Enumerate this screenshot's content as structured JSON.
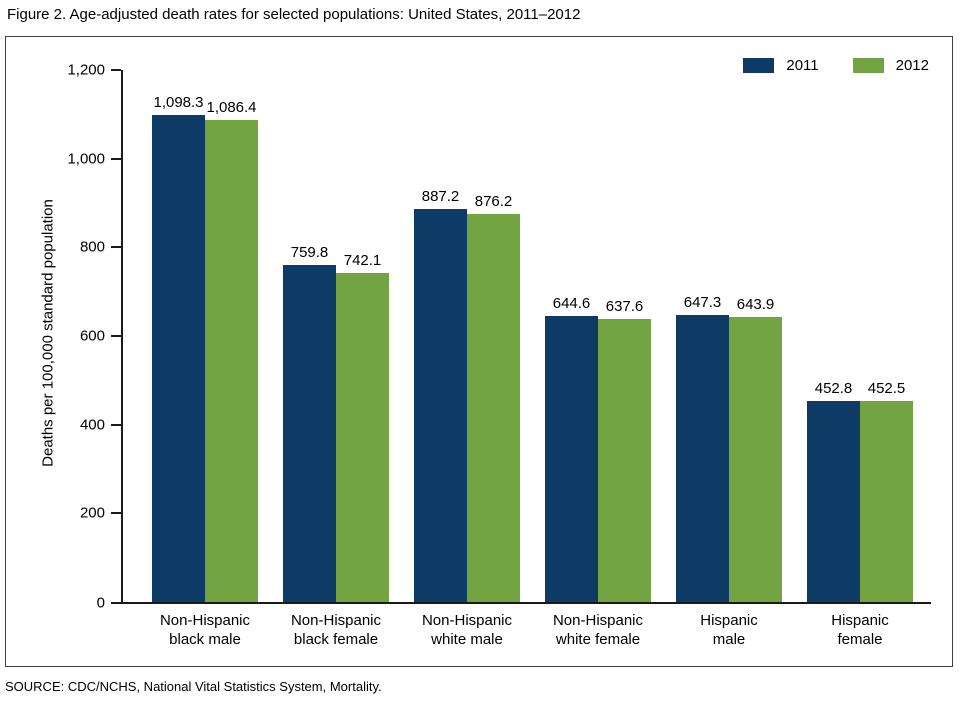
{
  "title": "Figure 2. Age-adjusted death rates for selected populations: United States, 2011–2012",
  "source": "SOURCE: CDC/NCHS, National Vital Statistics System, Mortality.",
  "colors": {
    "series_2011": "#0e3a66",
    "series_2012": "#73a442",
    "axis": "#1a1a1a",
    "frame_border": "#404040"
  },
  "legend": {
    "position": "top-right",
    "items": [
      {
        "label": "2011",
        "color": "#0e3a66"
      },
      {
        "label": "2012",
        "color": "#73a442"
      }
    ]
  },
  "chart_data": {
    "type": "bar",
    "title": "Figure 2. Age-adjusted death rates for selected populations: United States, 2011–2012",
    "xlabel": "",
    "ylabel": "Deaths per 100,000 standard population",
    "ylim": [
      0,
      1200
    ],
    "ytick_step": 200,
    "yticks": [
      {
        "value": 0,
        "label": "0"
      },
      {
        "value": 200,
        "label": "200"
      },
      {
        "value": 400,
        "label": "400"
      },
      {
        "value": 600,
        "label": "600"
      },
      {
        "value": 800,
        "label": "800"
      },
      {
        "value": 1000,
        "label": "1,000"
      },
      {
        "value": 1200,
        "label": "1,200"
      }
    ],
    "grid": false,
    "legend_position": "top-right",
    "categories": [
      "Non-Hispanic black male",
      "Non-Hispanic black female",
      "Non-Hispanic white male",
      "Non-Hispanic white female",
      "Hispanic male",
      "Hispanic female"
    ],
    "category_lines": [
      [
        "Non-Hispanic",
        "black male"
      ],
      [
        "Non-Hispanic",
        "black female"
      ],
      [
        "Non-Hispanic",
        "white male"
      ],
      [
        "Non-Hispanic",
        "white female"
      ],
      [
        "Hispanic",
        "male"
      ],
      [
        "Hispanic",
        "female"
      ]
    ],
    "series": [
      {
        "name": "2011",
        "color": "#0e3a66",
        "values": [
          1098.3,
          759.8,
          887.2,
          644.6,
          647.3,
          452.8
        ],
        "labels": [
          "1,098.3",
          "759.8",
          "887.2",
          "644.6",
          "647.3",
          "452.8"
        ]
      },
      {
        "name": "2012",
        "color": "#73a442",
        "values": [
          1086.4,
          742.1,
          876.2,
          637.6,
          643.9,
          452.5
        ],
        "labels": [
          "1,086.4",
          "742.1",
          "876.2",
          "637.6",
          "643.9",
          "452.5"
        ]
      }
    ]
  }
}
